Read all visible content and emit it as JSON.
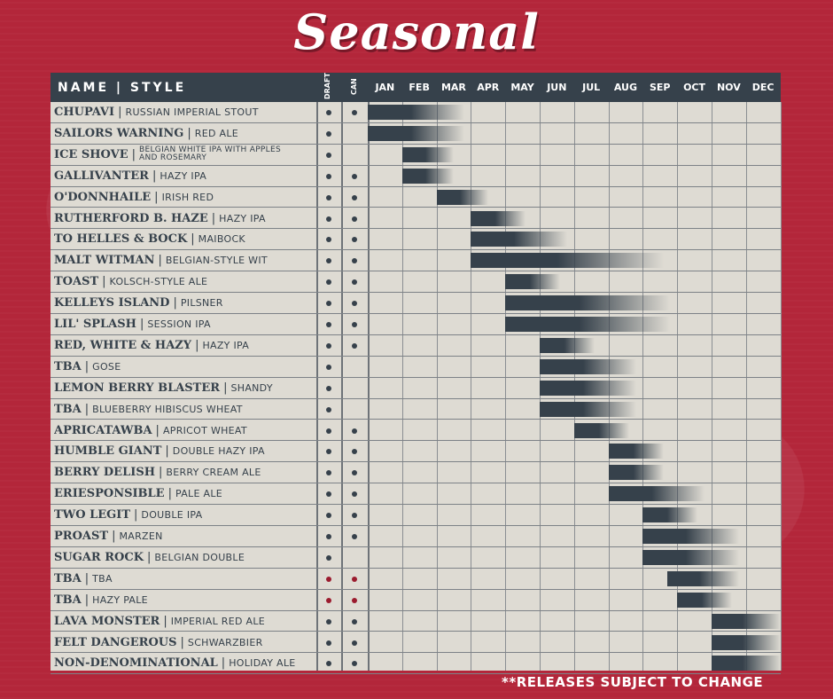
{
  "title": "Seasonal",
  "header": {
    "name_style": "NAME | STYLE",
    "draft": "DRAFT",
    "can": "CAN",
    "months": [
      "JAN",
      "FEB",
      "MAR",
      "APR",
      "MAY",
      "JUN",
      "JUL",
      "AUG",
      "SEP",
      "OCT",
      "NOV",
      "DEC"
    ]
  },
  "beers": [
    {
      "name": "CHUPAVI",
      "style": "RUSSIAN IMPERIAL STOUT",
      "draft": true,
      "can": true,
      "start": 0,
      "end": 2.8
    },
    {
      "name": "SAILORS WARNING",
      "style": "RED ALE",
      "draft": true,
      "can": false,
      "start": 0,
      "end": 2.8
    },
    {
      "name": "ICE SHOVE",
      "style": "BELGIAN WHITE IPA WITH APPLES AND ROSEMARY",
      "draft": true,
      "can": false,
      "start": 1,
      "end": 2.5
    },
    {
      "name": "GALLIVANTER",
      "style": "HAZY IPA",
      "draft": true,
      "can": true,
      "start": 1,
      "end": 2.5
    },
    {
      "name": "O'DONNHAILE",
      "style": "IRISH RED",
      "draft": true,
      "can": true,
      "start": 2,
      "end": 3.5
    },
    {
      "name": "RUTHERFORD B. HAZE",
      "style": "HAZY IPA",
      "draft": true,
      "can": true,
      "start": 3,
      "end": 4.6
    },
    {
      "name": "TO HELLES & BOCK",
      "style": "MAIBOCK",
      "draft": true,
      "can": true,
      "start": 3,
      "end": 5.8
    },
    {
      "name": "MALT WITMAN",
      "style": "BELGIAN-STYLE WIT",
      "draft": true,
      "can": true,
      "start": 3,
      "end": 8.6
    },
    {
      "name": "TOAST",
      "style": "KOLSCH-STYLE ALE",
      "draft": true,
      "can": true,
      "start": 4,
      "end": 5.6
    },
    {
      "name": "KELLEYS ISLAND",
      "style": "PILSNER",
      "draft": true,
      "can": true,
      "start": 4,
      "end": 8.8
    },
    {
      "name": "LIL' SPLASH",
      "style": "SESSION IPA",
      "draft": true,
      "can": true,
      "start": 4,
      "end": 8.8
    },
    {
      "name": "RED, WHITE & HAZY",
      "style": "HAZY IPA",
      "draft": true,
      "can": true,
      "start": 5,
      "end": 6.6
    },
    {
      "name": "TBA",
      "style": "GOSE",
      "draft": true,
      "can": false,
      "start": 5,
      "end": 7.8
    },
    {
      "name": "LEMON BERRY BLASTER",
      "style": "SHANDY",
      "draft": true,
      "can": false,
      "start": 5,
      "end": 7.8
    },
    {
      "name": "TBA",
      "style": "BLUEBERRY HIBISCUS WHEAT",
      "draft": true,
      "can": false,
      "start": 5,
      "end": 7.8
    },
    {
      "name": "APRICATAWBA",
      "style": "APRICOT WHEAT",
      "draft": true,
      "can": true,
      "start": 6,
      "end": 7.6
    },
    {
      "name": "HUMBLE GIANT",
      "style": "DOUBLE HAZY IPA",
      "draft": true,
      "can": true,
      "start": 7,
      "end": 8.6
    },
    {
      "name": "BERRY DELISH",
      "style": "BERRY CREAM ALE",
      "draft": true,
      "can": true,
      "start": 7,
      "end": 8.6
    },
    {
      "name": "ERIESPONSIBLE",
      "style": "PALE ALE",
      "draft": true,
      "can": true,
      "start": 7,
      "end": 9.8
    },
    {
      "name": "TWO LEGIT",
      "style": "DOUBLE IPA",
      "draft": true,
      "can": true,
      "start": 8,
      "end": 9.6
    },
    {
      "name": "PROAST",
      "style": "MARZEN",
      "draft": true,
      "can": true,
      "start": 8,
      "end": 10.8
    },
    {
      "name": "SUGAR ROCK",
      "style": "BELGIAN DOUBLE",
      "draft": true,
      "can": false,
      "start": 8,
      "end": 10.8
    },
    {
      "name": "TBA",
      "style": "TBA",
      "draft": true,
      "can": true,
      "start": 8.7,
      "end": 10.8,
      "red": true
    },
    {
      "name": "TBA",
      "style": "HAZY PALE",
      "draft": true,
      "can": true,
      "start": 9,
      "end": 10.6,
      "red": true
    },
    {
      "name": "LAVA MONSTER",
      "style": "IMPERIAL RED ALE",
      "draft": true,
      "can": true,
      "start": 10,
      "end": 12
    },
    {
      "name": "FELT DANGEROUS",
      "style": "SCHWARZBIER",
      "draft": true,
      "can": true,
      "start": 10,
      "end": 12
    },
    {
      "name": "NON-DENOMINATIONAL",
      "style": "HOLIDAY ALE",
      "draft": true,
      "can": true,
      "start": 10,
      "end": 12
    }
  ],
  "note": "**RELEASES SUBJECT TO CHANGE"
}
